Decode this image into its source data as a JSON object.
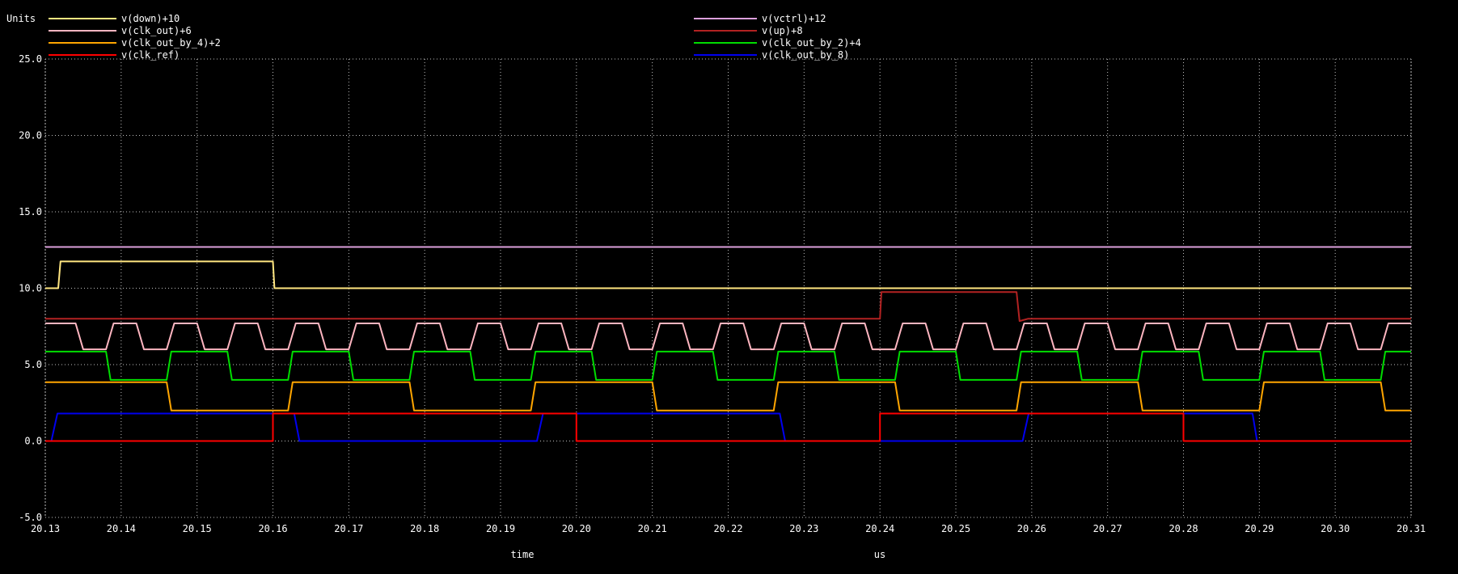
{
  "chart_data": {
    "type": "line",
    "units_label": "Units",
    "xlabel": "time",
    "x_unit": "us",
    "xlim": [
      20.13,
      20.31
    ],
    "ylim": [
      -5,
      25
    ],
    "grid": true,
    "x_ticks": [
      "20.13",
      "20.14",
      "20.15",
      "20.16",
      "20.17",
      "20.18",
      "20.19",
      "20.20",
      "20.21",
      "20.22",
      "20.23",
      "20.24",
      "20.25",
      "20.26",
      "20.27",
      "20.28",
      "20.29",
      "20.30",
      "20.31"
    ],
    "y_ticks": [
      "-5.0",
      "0.0",
      "5.0",
      "10.0",
      "15.0",
      "20.0",
      "25.0"
    ],
    "legend": [
      {
        "name": "v(down)+10",
        "color": "#ffe680"
      },
      {
        "name": "v(vctrl)+12",
        "color": "#dca0dc"
      },
      {
        "name": "v(clk_out)+6",
        "color": "#ffb6c1"
      },
      {
        "name": "v(up)+8",
        "color": "#b22222"
      },
      {
        "name": "v(clk_out_by_4)+2",
        "color": "#ffa500"
      },
      {
        "name": "v(clk_out_by_2)+4",
        "color": "#00dd00"
      },
      {
        "name": "v(clk_ref)",
        "color": "#ff0000"
      },
      {
        "name": "v(clk_out_by_8)",
        "color": "#0000ee"
      }
    ],
    "series": [
      {
        "name": "v(vctrl)+12",
        "color": "#dca0dc",
        "points": [
          [
            20.13,
            12.7
          ],
          [
            20.31,
            12.7
          ]
        ]
      },
      {
        "name": "v(down)+10",
        "color": "#ffe680",
        "points": [
          [
            20.13,
            10.0
          ],
          [
            20.1317,
            10.0
          ],
          [
            20.132,
            11.75
          ],
          [
            20.16,
            11.75
          ],
          [
            20.1602,
            10.0
          ],
          [
            20.31,
            10.0
          ]
        ]
      },
      {
        "name": "v(up)+8",
        "color": "#b22222",
        "points": [
          [
            20.13,
            8.0
          ],
          [
            20.24,
            8.0
          ],
          [
            20.2402,
            9.75
          ],
          [
            20.258,
            9.75
          ],
          [
            20.2584,
            7.85
          ],
          [
            20.2595,
            8.0
          ],
          [
            20.31,
            8.0
          ]
        ]
      },
      {
        "name": "v(clk_out)+6",
        "color": "#ffb6c1",
        "clock": true,
        "start": 20.13,
        "end": 20.31,
        "period": 0.008,
        "phase": 0.0,
        "start_level": "high",
        "low": 6.0,
        "high": 7.7,
        "edge": 0.001
      },
      {
        "name": "v(clk_out_by_2)+4",
        "color": "#00dd00",
        "clock": true,
        "start": 20.13,
        "end": 20.31,
        "period": 0.016,
        "phase": 0.0,
        "start_level": "high",
        "low": 4.0,
        "high": 5.85,
        "edge": 0.0006
      },
      {
        "name": "v(clk_out_by_4)+2",
        "color": "#ffa500",
        "clock": true,
        "start": 20.13,
        "end": 20.31,
        "period": 0.032,
        "phase": 0.0,
        "start_level": "high",
        "low": 2.0,
        "high": 3.85,
        "edge": 0.0006
      },
      {
        "name": "v(clk_out_by_8)",
        "color": "#0000ee",
        "points": [
          [
            20.13,
            0.0
          ],
          [
            20.1308,
            0.0
          ],
          [
            20.1316,
            1.8
          ],
          [
            20.1628,
            1.8
          ],
          [
            20.1635,
            0.0
          ],
          [
            20.1948,
            0.0
          ],
          [
            20.1956,
            1.8
          ],
          [
            20.2268,
            1.8
          ],
          [
            20.2275,
            0.0
          ],
          [
            20.2588,
            0.0
          ],
          [
            20.2596,
            1.8
          ],
          [
            20.2891,
            1.8
          ],
          [
            20.2897,
            0.0
          ],
          [
            20.31,
            0.0
          ]
        ]
      },
      {
        "name": "v(clk_ref)",
        "color": "#ff0000",
        "points": [
          [
            20.13,
            0.0
          ],
          [
            20.16,
            0.0
          ],
          [
            20.16,
            1.8
          ],
          [
            20.2,
            1.8
          ],
          [
            20.2,
            0.0
          ],
          [
            20.24,
            0.0
          ],
          [
            20.24,
            1.8
          ],
          [
            20.28,
            1.8
          ],
          [
            20.28,
            0.0
          ],
          [
            20.31,
            0.0
          ]
        ]
      }
    ]
  }
}
